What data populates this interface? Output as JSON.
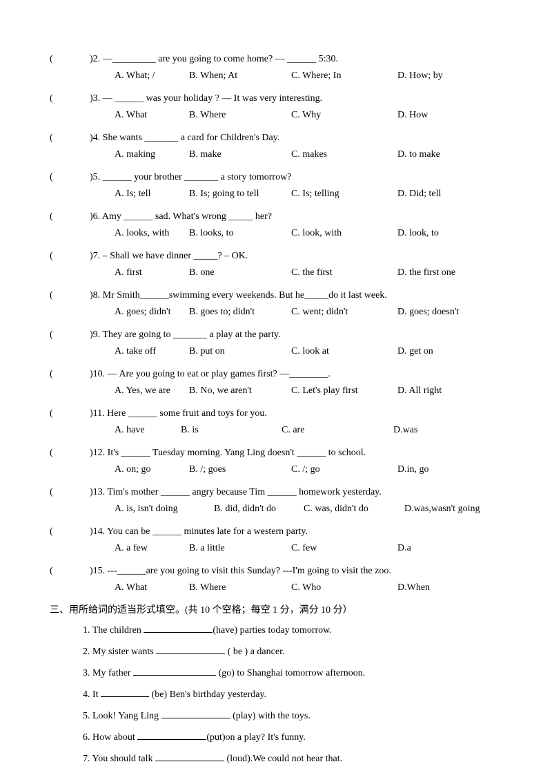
{
  "questions": [
    {
      "num": "2",
      "text": ")2. —_________ are you going to come home? — ______ 5:30.",
      "opts": [
        "A. What; /",
        "B. When; At",
        "C. Where; In",
        "D. How; by"
      ]
    },
    {
      "num": "3",
      "text": ")3. — ______ was your holiday ? — It was very interesting.",
      "opts": [
        "A. What",
        "B. Where",
        "C. Why",
        "D. How"
      ]
    },
    {
      "num": "4",
      "text": ")4. She wants _______ a card for Children's Day.",
      "opts": [
        "A. making",
        "B. make",
        "C. makes",
        "D. to make"
      ]
    },
    {
      "num": "5",
      "text": ")5. ______ your brother _______ a story tomorrow?",
      "opts": [
        "A. Is; tell",
        "B. Is; going to tell",
        "C. Is; telling",
        "D. Did; tell"
      ]
    },
    {
      "num": "6",
      "text": ")6. Amy ______ sad. What's wrong _____ her?",
      "opts": [
        "A. looks, with",
        "B. looks, to",
        "C. look, with",
        "D. look, to"
      ]
    },
    {
      "num": "7",
      "text": ")7. – Shall we have dinner _____?   – OK.",
      "opts": [
        "A. first",
        "B. one",
        "C. the first",
        "D. the first one"
      ]
    },
    {
      "num": "8",
      "text": ")8. Mr Smith______swimming every weekends. But he_____do it last week.",
      "opts": [
        "A. goes; didn't",
        "B. goes to; didn't",
        "C. went; didn't",
        "D. goes; doesn't"
      ]
    },
    {
      "num": "9",
      "text": ")9. They are going to _______ a play at the party.",
      "opts": [
        "A. take off",
        "B. put on",
        "C. look at",
        "D. get on"
      ]
    },
    {
      "num": "10",
      "text": ")10. — Are you going to eat or play games first? —________.",
      "opts": [
        "A. Yes, we are",
        "B. No, we aren't",
        "C. Let's play first",
        "D. All right"
      ]
    },
    {
      "num": "11",
      "text": ")11. Here ______ some fruit and toys for you.",
      "opts": [
        "A. have",
        "B. is",
        "C. are",
        "D.was"
      ],
      "compact": true
    },
    {
      "num": "12",
      "text": ")12. It's ______ Tuesday morning. Yang Ling doesn't ______ to school.",
      "opts": [
        "A. on; go",
        "B. /; goes",
        "C. /; go",
        "D.in, go"
      ]
    },
    {
      "num": "13",
      "text": ")13. Tim's mother ______ angry because Tim ______ homework yesterday.",
      "opts": [
        "A. is, isn't doing",
        "B. did, didn't do",
        "C. was, didn't do",
        "D.was,wasn't going"
      ],
      "q13": true
    },
    {
      "num": "14",
      "text": ")14. You can be ______ minutes late for a western party.",
      "opts": [
        "A. a few",
        "B. a little",
        "C. few",
        "D.a"
      ]
    },
    {
      "num": "15",
      "text": ")15. ---______are you going to visit this Sunday?    ---I'm going to visit the zoo.",
      "opts": [
        "A. What",
        "B. Where",
        "C. Who",
        "D.When"
      ]
    }
  ],
  "section3": {
    "title": "三、用所给词的适当形式填空。(共 10 个空格；每空 1 分，满分 10 分）",
    "items": [
      {
        "pre": "1. The children ",
        "blank": "long",
        "post": "(have) parties today tomorrow."
      },
      {
        "pre": "2. My sister wants ",
        "blank": "long",
        "post": " ( be ) a dancer."
      },
      {
        "pre": "3. My father ",
        "blank": "xl",
        "post": " (go) to Shanghai tomorrow afternoon."
      },
      {
        "pre": "4. It ",
        "blank": "med",
        "post": " (be) Ben's birthday yesterday."
      },
      {
        "pre": "5. Look! Yang Ling ",
        "blank": "long",
        "post": " (play) with the toys."
      },
      {
        "pre": "6. How about  ",
        "blank": "long",
        "post": "(put)on a play? It's funny."
      },
      {
        "pre": "7. You should talk ",
        "blank": "long",
        "post": " (loud).We could not hear that."
      }
    ]
  }
}
